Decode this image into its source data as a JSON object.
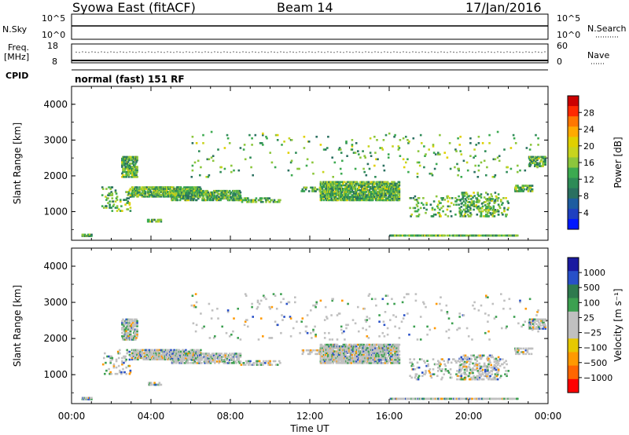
{
  "header": {
    "station": "Syowa East (fitACF)",
    "beam": "Beam 14",
    "date": "17/Jan/2016"
  },
  "top_panels": {
    "nsky_label": "N.Sky",
    "nsky_ticks": [
      "10^5",
      "10^0"
    ],
    "nsearch_label": "N.Search",
    "nsearch_ticks": [
      "10^5",
      "10^0"
    ],
    "freq_label_line1": "Freq.",
    "freq_label_line2": "[MHz]",
    "freq_ticks": [
      "18",
      "8"
    ],
    "nave_label": "Nave",
    "nave_ticks": [
      "60",
      "0"
    ],
    "cpid_label": "CPID",
    "cpid_value": "normal (fast) 151 RF"
  },
  "chart_data": [
    {
      "type": "heatmap",
      "name": "power",
      "ylabel": "Slant Range [km]",
      "yticks": [
        "4000",
        "3000",
        "2000",
        "1000"
      ],
      "ylim": [
        200,
        4500
      ],
      "x_ticks": [
        "00:00",
        "04:00",
        "08:00",
        "12:00",
        "16:00",
        "20:00",
        "00:00"
      ],
      "xlim_hours": [
        0,
        24
      ],
      "colorbar_label": "Power [dB]",
      "colorbar_ticks": [
        "28",
        "24",
        "20",
        "16",
        "12",
        "8",
        "4"
      ],
      "colorbar_colors": [
        "#cc0000",
        "#ff2a00",
        "#ff7700",
        "#ffaa00",
        "#e0d000",
        "#c8d41e",
        "#8cc63c",
        "#3caa50",
        "#2e8b57",
        "#2a7060",
        "#1e5ca0",
        "#1e40c0",
        "#0018ff"
      ]
    },
    {
      "type": "heatmap",
      "name": "velocity",
      "ylabel": "Slant Range [km]",
      "yticks": [
        "4000",
        "3000",
        "2000",
        "1000"
      ],
      "ylim": [
        200,
        4500
      ],
      "x_ticks": [
        "00:00",
        "04:00",
        "08:00",
        "12:00",
        "16:00",
        "20:00",
        "00:00"
      ],
      "xlim_hours": [
        0,
        24
      ],
      "xlabel": "Time UT",
      "colorbar_label": "Velocity [m s⁻¹]",
      "colorbar_ticks": [
        "1000",
        "500",
        "100",
        "25",
        "−25",
        "−100",
        "−500",
        "−1000"
      ],
      "colorbar_colors": [
        "#1a1aa0",
        "#2850c8",
        "#2e7a4e",
        "#3ca050",
        "#c0c0c0",
        "#c0c0c0",
        "#e6c800",
        "#ff9900",
        "#ff6600",
        "#ff0000"
      ]
    }
  ]
}
